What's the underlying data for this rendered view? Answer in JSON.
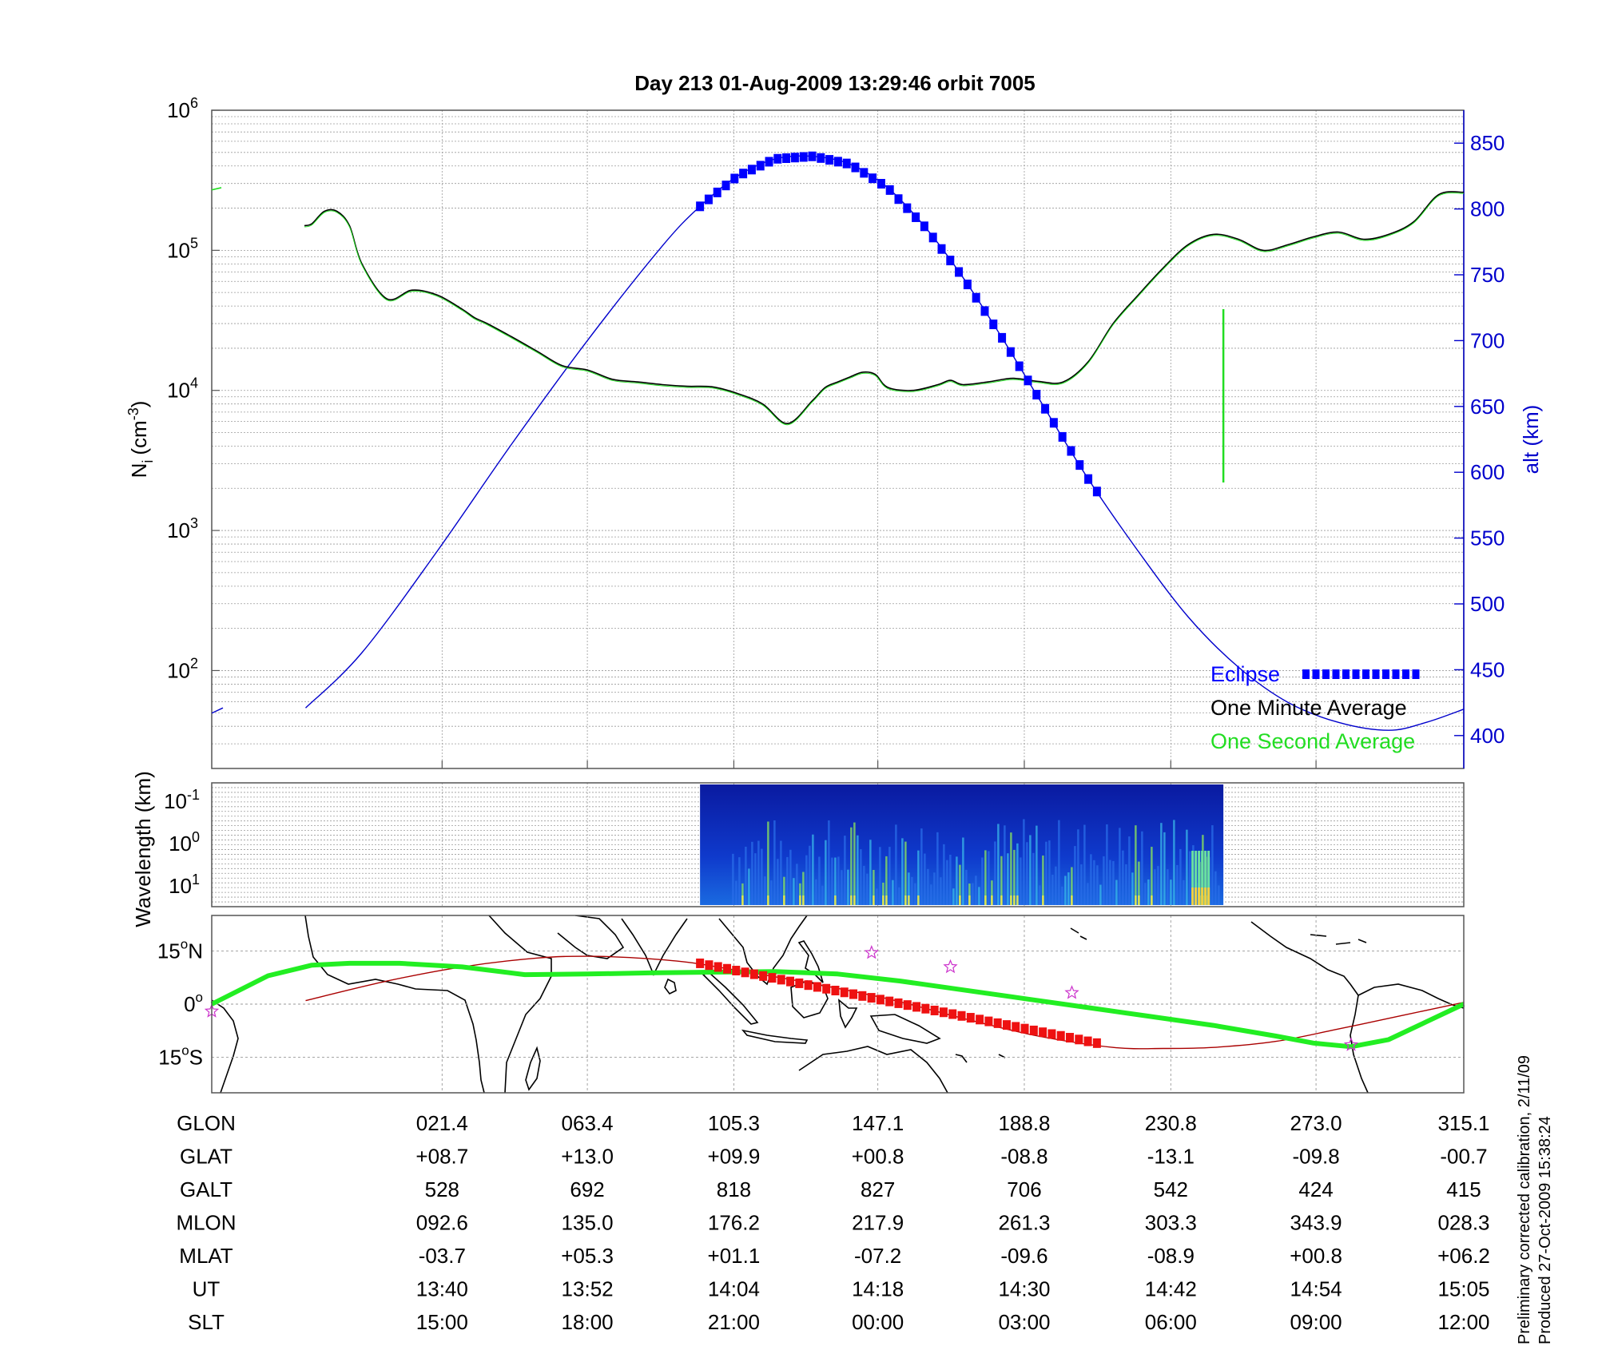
{
  "title": "Day 213  01-Aug-2009 13:29:46   orbit 7005",
  "colors": {
    "altitude": "#0000cc",
    "eclipse": "#0000ff",
    "one_minute": "#000000",
    "one_second": "#22dd22",
    "ground_track": "#22ee22",
    "equator_track": "#aa0000",
    "eclipse_track": "#ee1111",
    "stars": "#cc33cc"
  },
  "chart_data": [
    {
      "id": "density",
      "type": "line",
      "ylabel_main": "N",
      "ylabel_sub": "i",
      "ylabel_units": "(cm",
      "ylabel_exp": "-3",
      "ylabel_close": ")",
      "yscale": "log",
      "ylim": [
        20,
        1000000
      ],
      "yticks": [
        {
          "base": "10",
          "exp": "6",
          "value": 1000000
        },
        {
          "base": "10",
          "exp": "5",
          "value": 100000
        },
        {
          "base": "10",
          "exp": "4",
          "value": 10000
        },
        {
          "base": "10",
          "exp": "3",
          "value": 1000
        },
        {
          "base": "10",
          "exp": "2",
          "value": 100
        }
      ],
      "y2label": "alt (km)",
      "y2lim": [
        375,
        875
      ],
      "y2ticks": [
        400,
        450,
        500,
        550,
        600,
        650,
        700,
        750,
        800,
        850
      ],
      "xlim": [
        0,
        1
      ],
      "grid": true,
      "legend": {
        "position": "bottom-right",
        "entries": [
          "Eclipse",
          "One Minute Average",
          "One Second Average"
        ]
      },
      "series": [
        {
          "name": "One Minute Average",
          "x": [
            0.074,
            0.08,
            0.09,
            0.1,
            0.11,
            0.12,
            0.14,
            0.16,
            0.18,
            0.2,
            0.21,
            0.22,
            0.24,
            0.26,
            0.28,
            0.3,
            0.32,
            0.34,
            0.36,
            0.38,
            0.4,
            0.42,
            0.44,
            0.46,
            0.48,
            0.49,
            0.5,
            0.51,
            0.52,
            0.53,
            0.54,
            0.56,
            0.58,
            0.59,
            0.6,
            0.62,
            0.64,
            0.66,
            0.68,
            0.7,
            0.72,
            0.74,
            0.76,
            0.78,
            0.8,
            0.82,
            0.84,
            0.86,
            0.88,
            0.9,
            0.92,
            0.94,
            0.96,
            0.98,
            1.0
          ],
          "y": [
            150000,
            155000,
            190000,
            190000,
            150000,
            80000,
            45000,
            52000,
            48000,
            38000,
            33000,
            30000,
            24000,
            19000,
            15000,
            14000,
            12000,
            11500,
            11000,
            10700,
            10600,
            9500,
            8000,
            5800,
            8500,
            10500,
            11500,
            12500,
            13500,
            13000,
            10500,
            10000,
            11000,
            11800,
            11000,
            11500,
            12200,
            11600,
            11500,
            16000,
            30000,
            48000,
            75000,
            110000,
            130000,
            120000,
            100000,
            110000,
            125000,
            135000,
            120000,
            130000,
            160000,
            250000,
            260000
          ]
        },
        {
          "name": "One Second Average",
          "spike_x": 0.808,
          "spike_y": [
            2200,
            38000
          ]
        },
        {
          "name": "altitude",
          "axis": "right",
          "x": [
            0.075,
            0.12,
            0.18,
            0.24,
            0.3,
            0.36,
            0.39,
            0.42,
            0.45,
            0.48,
            0.51,
            0.54,
            0.57,
            0.6,
            0.63,
            0.66,
            0.7,
            0.74,
            0.78,
            0.82,
            0.86,
            0.9,
            0.94,
            0.97,
            1.0
          ],
          "y": [
            421,
            463,
            540,
            622,
            700,
            772,
            802,
            825,
            838,
            840,
            834,
            816,
            786,
            748,
            704,
            657,
            595,
            540,
            490,
            452,
            425,
            410,
            404,
            410,
            420
          ]
        },
        {
          "name": "Eclipse",
          "axis": "right",
          "x_start": 0.39,
          "x_end": 0.707
        }
      ]
    },
    {
      "id": "spectrogram",
      "type": "heatmap",
      "ylabel": "Wavelength (km)",
      "yscale": "log",
      "yticks": [
        {
          "base": "10",
          "exp": "-1"
        },
        {
          "base": "10",
          "exp": "0"
        },
        {
          "base": "10",
          "exp": "1"
        }
      ],
      "x_start": 0.39,
      "x_end": 0.808
    },
    {
      "id": "map",
      "type": "line",
      "xlim": [
        0,
        1
      ],
      "ylim": [
        -25,
        25
      ],
      "yticks": [
        {
          "num": "15",
          "deg": "o",
          "hem": "N",
          "value": 15
        },
        {
          "num": "0",
          "deg": "o",
          "hem": "",
          "value": 0
        },
        {
          "num": "15",
          "deg": "o",
          "hem": "S",
          "value": -15
        }
      ],
      "series": [
        {
          "name": "ground track",
          "x": [
            0.0,
            0.045,
            0.08,
            0.11,
            0.15,
            0.2,
            0.25,
            0.3,
            0.35,
            0.4,
            0.45,
            0.5,
            0.55,
            0.6,
            0.65,
            0.7,
            0.75,
            0.8,
            0.85,
            0.88,
            0.91,
            0.94,
            0.97,
            1.0
          ],
          "y": [
            0,
            8,
            11,
            11.5,
            11.5,
            10.5,
            8.3,
            8.5,
            8.8,
            9.0,
            9.2,
            8.5,
            6.5,
            4.0,
            1.5,
            -1.0,
            -3.5,
            -6.0,
            -9.0,
            -11.0,
            -12.0,
            -10.0,
            -5.0,
            0.0
          ]
        },
        {
          "name": "equator track",
          "x": [
            0.075,
            0.14,
            0.2,
            0.26,
            0.3,
            0.34,
            0.38,
            0.42,
            0.48,
            0.54,
            0.6,
            0.66,
            0.72,
            0.76,
            0.8,
            0.85,
            0.9,
            0.94,
            1.0
          ],
          "y": [
            1,
            6.5,
            10.5,
            13,
            13.5,
            13,
            11.8,
            9.5,
            5.8,
            1.5,
            -4,
            -9,
            -12.2,
            -12.5,
            -12.2,
            -10.5,
            -7,
            -4,
            0.5
          ]
        },
        {
          "name": "eclipse track",
          "x_start": 0.39,
          "x_end": 0.707,
          "y_start": 11.5,
          "y_end": -11
        }
      ],
      "stars": [
        {
          "x": 0.0,
          "y": -2
        },
        {
          "x": 0.527,
          "y": 14.5
        },
        {
          "x": 0.59,
          "y": 10.5
        },
        {
          "x": 0.687,
          "y": 3.2
        },
        {
          "x": 0.91,
          "y": -11.5
        }
      ]
    }
  ],
  "ephemeris": {
    "rows": [
      {
        "label": "GLON",
        "values": [
          "021.4",
          "063.4",
          "105.3",
          "147.1",
          "188.8",
          "230.8",
          "273.0",
          "315.1"
        ]
      },
      {
        "label": "GLAT",
        "values": [
          "+08.7",
          "+13.0",
          "+09.9",
          "+00.8",
          "-08.8",
          "-13.1",
          "-09.8",
          "-00.7"
        ]
      },
      {
        "label": "GALT",
        "values": [
          "528",
          "692",
          "818",
          "827",
          "706",
          "542",
          "424",
          "415"
        ]
      },
      {
        "label": "MLON",
        "values": [
          "092.6",
          "135.0",
          "176.2",
          "217.9",
          "261.3",
          "303.3",
          "343.9",
          "028.3"
        ]
      },
      {
        "label": "MLAT",
        "values": [
          "-03.7",
          "+05.3",
          "+01.1",
          "-07.2",
          "-09.6",
          "-08.9",
          "+00.8",
          "+06.2"
        ]
      },
      {
        "label": "UT",
        "values": [
          "13:40",
          "13:52",
          "14:04",
          "14:18",
          "14:30",
          "14:42",
          "14:54",
          "15:05"
        ]
      },
      {
        "label": "SLT",
        "values": [
          "15:00",
          "18:00",
          "21:00",
          "00:00",
          "03:00",
          "06:00",
          "09:00",
          "12:00"
        ]
      }
    ],
    "columns_x": [
      0.184,
      0.3,
      0.417,
      0.532,
      0.649,
      0.766,
      0.882,
      1.0
    ]
  },
  "footer": {
    "line1": "Preliminary corrected calibration, 2/11/09",
    "line2": "Produced 27-Oct-2009 15:38:24"
  }
}
